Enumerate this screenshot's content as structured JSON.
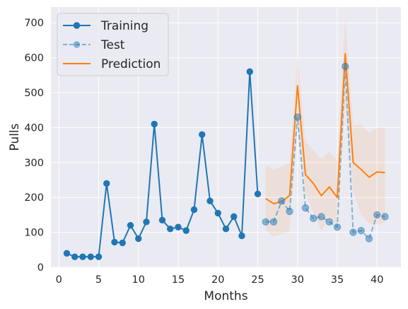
{
  "chart_data": {
    "type": "line",
    "xlabel": "Months",
    "ylabel": "Pulls",
    "xlim": [
      -1.0,
      43.0
    ],
    "ylim": [
      0,
      745
    ],
    "xticks": [
      0,
      5,
      10,
      15,
      20,
      25,
      30,
      35,
      40
    ],
    "yticks": [
      0,
      100,
      200,
      300,
      400,
      500,
      600,
      700
    ],
    "grid": true,
    "legend_position": "top-left",
    "series": [
      {
        "name": "Training",
        "color": "#1f77b4",
        "style": "solid-markers",
        "x": [
          1,
          2,
          3,
          4,
          5,
          6,
          7,
          8,
          9,
          10,
          11,
          12,
          13,
          14,
          15,
          16,
          17,
          18,
          19,
          20,
          21,
          22,
          23,
          24,
          25
        ],
        "y": [
          40,
          30,
          30,
          30,
          30,
          240,
          72,
          70,
          120,
          82,
          130,
          410,
          135,
          110,
          115,
          105,
          165,
          380,
          190,
          155,
          110,
          145,
          90,
          560,
          210
        ]
      },
      {
        "name": "Test",
        "color": "#1f77b4",
        "style": "dashed-markers",
        "x": [
          26,
          27,
          28,
          29,
          30,
          31,
          32,
          33,
          34,
          35,
          36,
          37,
          38,
          39,
          40,
          41
        ],
        "y": [
          130,
          130,
          190,
          160,
          430,
          170,
          140,
          145,
          130,
          115,
          575,
          100,
          105,
          82,
          150,
          145
        ]
      },
      {
        "name": "Prediction",
        "color": "#ff7f0e",
        "style": "solid",
        "x": [
          26,
          27,
          28,
          29,
          30,
          31,
          32,
          33,
          34,
          35,
          36,
          37,
          38,
          39,
          40,
          41
        ],
        "y": [
          197,
          182,
          188,
          205,
          520,
          265,
          240,
          205,
          230,
          200,
          612,
          300,
          280,
          258,
          273,
          271
        ],
        "band_lower": [
          105,
          88,
          95,
          102,
          415,
          210,
          155,
          105,
          140,
          120,
          465,
          215,
          150,
          125,
          122,
          128
        ],
        "band_upper": [
          292,
          280,
          288,
          300,
          610,
          360,
          335,
          310,
          330,
          305,
          715,
          405,
          410,
          385,
          400,
          400
        ]
      }
    ]
  }
}
